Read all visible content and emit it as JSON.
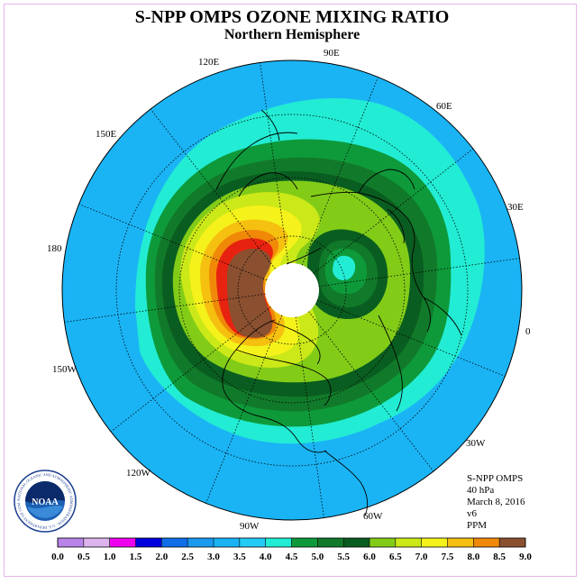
{
  "header": {
    "title": "S-NPP OMPS OZONE MIXING RATIO",
    "subtitle": "Northern Hemisphere"
  },
  "map": {
    "projection": "north-polar-stereographic",
    "longitude_labels": [
      "90E",
      "60E",
      "30E",
      "0",
      "30W",
      "60W",
      "90W",
      "120W",
      "150W",
      "180",
      "150E",
      "120E"
    ],
    "fill_order_outer_to_inner": [
      "3.0",
      "3.5",
      "4.0",
      "4.5",
      "5.0",
      "5.5",
      "6.0",
      "6.5",
      "7.0",
      "7.5",
      "8.0",
      "8.5"
    ]
  },
  "info": {
    "instrument": "S-NPP OMPS",
    "level": "40 hPa",
    "date": "March 8, 2016",
    "version": "v6",
    "units": "PPM"
  },
  "colorbar": {
    "ticks": [
      "0.0",
      "0.5",
      "1.0",
      "1.5",
      "2.0",
      "2.5",
      "3.0",
      "3.5",
      "4.0",
      "4.5",
      "5.0",
      "5.5",
      "6.0",
      "6.5",
      "7.0",
      "7.5",
      "8.0",
      "8.5",
      "9.0"
    ],
    "colors": [
      "#b884e8",
      "#dcb3ec",
      "#ee00ee",
      "#0000dd",
      "#0f6ee8",
      "#1a9aef",
      "#1ab4f5",
      "#23cbf5",
      "#22ecd4",
      "#0e9a3a",
      "#117a2a",
      "#0a5d20",
      "#82cc18",
      "#cbe818",
      "#f4f21a",
      "#f5c010",
      "#f08808",
      "#e82210",
      "#8a5030"
    ]
  },
  "logo": {
    "text": "NOAA",
    "ring_text": "NATIONAL OCEANIC AND ATMOSPHERIC ADMINISTRATION · U.S. DEPARTMENT OF COMMERCE"
  }
}
